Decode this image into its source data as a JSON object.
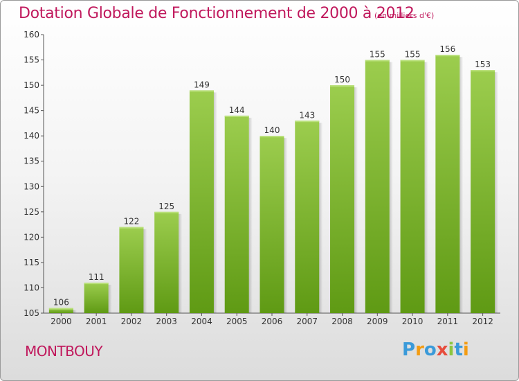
{
  "title": "Dotation Globale de Fonctionnement de 2000 à 2012",
  "unit": "(en milliers d'€)",
  "commune": "MONTBOUY",
  "logo": {
    "text": "Proxiti",
    "letters": [
      "P",
      "r",
      "o",
      "x",
      "i",
      "t",
      "i"
    ],
    "colors": [
      "#3a9ad9",
      "#f39c12",
      "#3a9ad9",
      "#e74c3c",
      "#8cc63f",
      "#3a9ad9",
      "#f39c12"
    ]
  },
  "colors": {
    "accent": "#c0185c",
    "bar_top": "#9ccd4e",
    "bar_bottom": "#5f9a14"
  },
  "chart_data": {
    "type": "bar",
    "categories": [
      "2000",
      "2001",
      "2002",
      "2003",
      "2004",
      "2005",
      "2006",
      "2007",
      "2008",
      "2009",
      "2010",
      "2011",
      "2012"
    ],
    "values": [
      106,
      111,
      122,
      125,
      149,
      144,
      140,
      143,
      150,
      155,
      155,
      156,
      153
    ],
    "ylim": [
      105,
      160
    ],
    "yticks": [
      105,
      110,
      115,
      120,
      125,
      130,
      135,
      140,
      145,
      150,
      155,
      160
    ],
    "grid": false
  }
}
